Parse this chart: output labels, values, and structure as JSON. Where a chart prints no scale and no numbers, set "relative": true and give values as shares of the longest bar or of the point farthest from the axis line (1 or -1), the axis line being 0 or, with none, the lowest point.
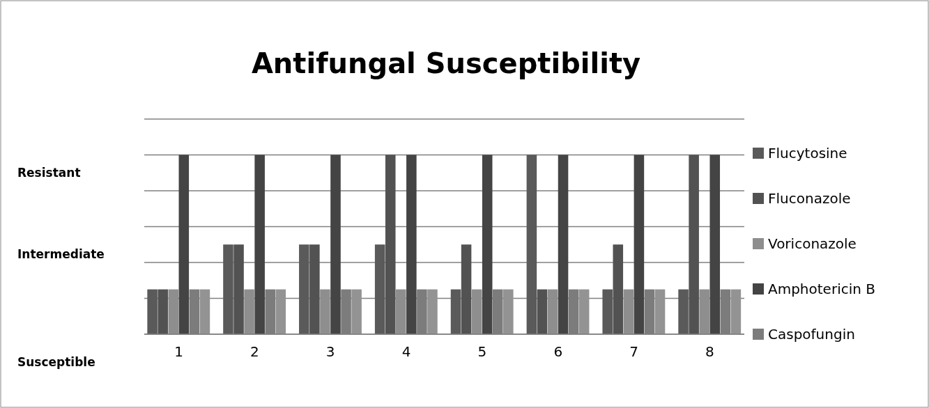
{
  "chart_data": {
    "type": "bar",
    "title": "Antifungal Susceptibility",
    "categories": [
      "1",
      "2",
      "3",
      "4",
      "5",
      "6",
      "7",
      "8"
    ],
    "series": [
      {
        "name": "Flucytosine",
        "color": "#5a5a5a",
        "values": [
          0.25,
          0.5,
          0.5,
          0.5,
          0.25,
          1,
          0.25,
          0.25
        ]
      },
      {
        "name": "Fluconazole",
        "color": "#525252",
        "values": [
          0.25,
          0.5,
          0.5,
          1,
          0.5,
          0.25,
          0.5,
          1
        ]
      },
      {
        "name": "Voriconazole",
        "color": "#8e8e8e",
        "values": [
          0.25,
          0.25,
          0.25,
          0.25,
          0.25,
          0.25,
          0.25,
          0.25
        ]
      },
      {
        "name": "Amphotericin B",
        "color": "#444444",
        "values": [
          1,
          1,
          1,
          1,
          1,
          1,
          1,
          1
        ]
      },
      {
        "name": "Caspofungin",
        "color": "#7c7c7c",
        "values": [
          0.25,
          0.25,
          0.25,
          0.25,
          0.25,
          0.25,
          0.25,
          0.25
        ]
      },
      {
        "color": "#939393",
        "values": [
          0.25,
          0.25,
          0.25,
          0.25,
          0.25,
          0.25,
          0.25,
          0.25
        ]
      }
    ],
    "relative": true,
    "annotations": [
      "Resistant",
      "Intermediate",
      "Susceptible"
    ],
    "grid": "y",
    "legend": "right"
  }
}
